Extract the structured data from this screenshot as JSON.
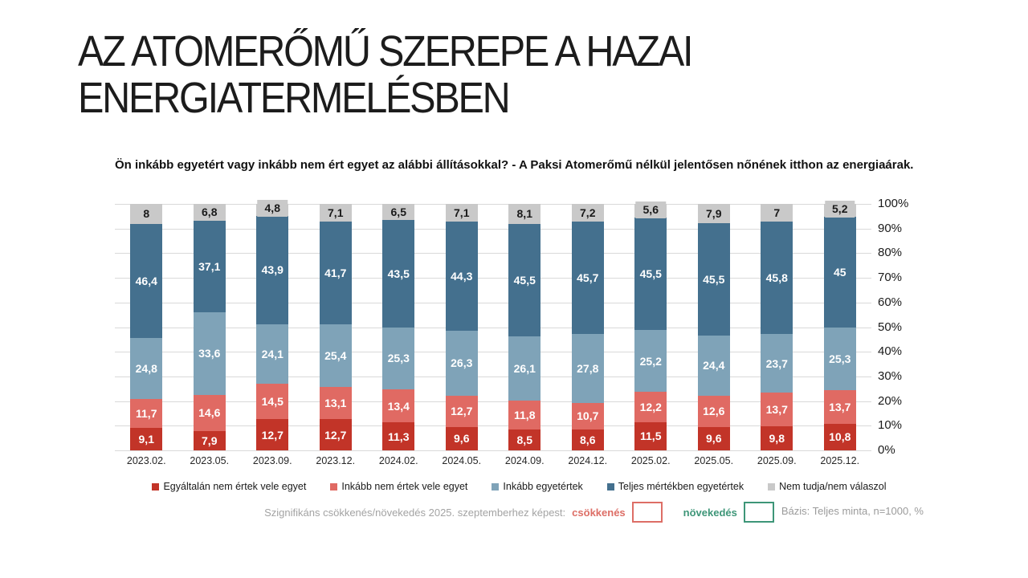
{
  "title": "AZ ATOMERŐMŰ SZEREPE A HAZAI ENERGIATERMELÉSBEN",
  "question": "Ön inkább egyetért vagy inkább nem ért egyet az alábbi állításokkal? - A Paksi Atomerőmű nélkül jelentősen nőnének itthon az energiaárak.",
  "chart_data": {
    "type": "bar",
    "stacked": true,
    "grid": true,
    "legend_position": "bottom",
    "ylim": [
      0,
      100
    ],
    "y_ticks": [
      "100%",
      "90%",
      "80%",
      "70%",
      "60%",
      "50%",
      "40%",
      "30%",
      "20%",
      "10%",
      "0%"
    ],
    "categories": [
      "2023.02.",
      "2023.05.",
      "2023.09.",
      "2023.12.",
      "2024.02.",
      "2024.05.",
      "2024.09.",
      "2024.12.",
      "2025.02.",
      "2025.05.",
      "2025.09.",
      "2025.12."
    ],
    "series": [
      {
        "name": "Egyáltalán nem értek vele egyet",
        "color": "#c23428",
        "label_color": "#ffffff",
        "values": [
          9.1,
          7.9,
          12.7,
          12.7,
          11.3,
          9.6,
          8.5,
          8.6,
          11.5,
          9.6,
          9.8,
          10.8
        ],
        "labels": [
          "9,1",
          "7,9",
          "12,7",
          "12,7",
          "11,3",
          "9,6",
          "8,5",
          "8,6",
          "11,5",
          "9,6",
          "9,8",
          "10,8"
        ]
      },
      {
        "name": "Inkább nem értek vele egyet",
        "color": "#e06a63",
        "label_color": "#ffffff",
        "values": [
          11.7,
          14.6,
          14.5,
          13.1,
          13.4,
          12.7,
          11.8,
          10.7,
          12.2,
          12.6,
          13.7,
          13.7
        ],
        "labels": [
          "11,7",
          "14,6",
          "14,5",
          "13,1",
          "13,4",
          "12,7",
          "11,8",
          "10,7",
          "12,2",
          "12,6",
          "13,7",
          "13,7"
        ]
      },
      {
        "name": "Inkább egyetértek",
        "color": "#7fa3b8",
        "label_color": "#ffffff",
        "values": [
          24.8,
          33.6,
          24.1,
          25.4,
          25.3,
          26.3,
          26.1,
          27.8,
          25.2,
          24.4,
          23.7,
          25.3
        ],
        "labels": [
          "24,8",
          "33,6",
          "24,1",
          "25,4",
          "25,3",
          "26,3",
          "26,1",
          "27,8",
          "25,2",
          "24,4",
          "23,7",
          "25,3"
        ]
      },
      {
        "name": "Teljes mértékben egyetértek",
        "color": "#44708e",
        "label_color": "#ffffff",
        "values": [
          46.4,
          37.1,
          43.9,
          41.7,
          43.5,
          44.3,
          45.5,
          45.7,
          45.5,
          45.5,
          45.8,
          45
        ],
        "labels": [
          "46,4",
          "37,1",
          "43,9",
          "41,7",
          "43,5",
          "44,3",
          "45,5",
          "45,7",
          "45,5",
          "45,5",
          "45,8",
          "45"
        ]
      },
      {
        "name": "Nem tudja/nem válaszol",
        "color": "#c9c9c9",
        "label_color": "#1a1a1a",
        "values": [
          8,
          6.8,
          4.8,
          7.1,
          6.5,
          7.1,
          8.1,
          7.2,
          5.6,
          7.9,
          7,
          5.2
        ],
        "labels": [
          "8",
          "6,8",
          "4,8",
          "7,1",
          "6,5",
          "7,1",
          "8,1",
          "7,2",
          "5,6",
          "7,9",
          "7",
          "5,2"
        ]
      }
    ],
    "grid_color": "#d9d9d9"
  },
  "footnote": {
    "significance_text": "Szignifikáns csökkenés/növekedés 2025. szeptemberhez képest:",
    "decrease_label": "csökkenés",
    "decrease_color": "#dd6e66",
    "increase_label": "növekedés",
    "increase_color": "#3e9678",
    "basis": "Bázis: Teljes minta, n=1000, %"
  }
}
